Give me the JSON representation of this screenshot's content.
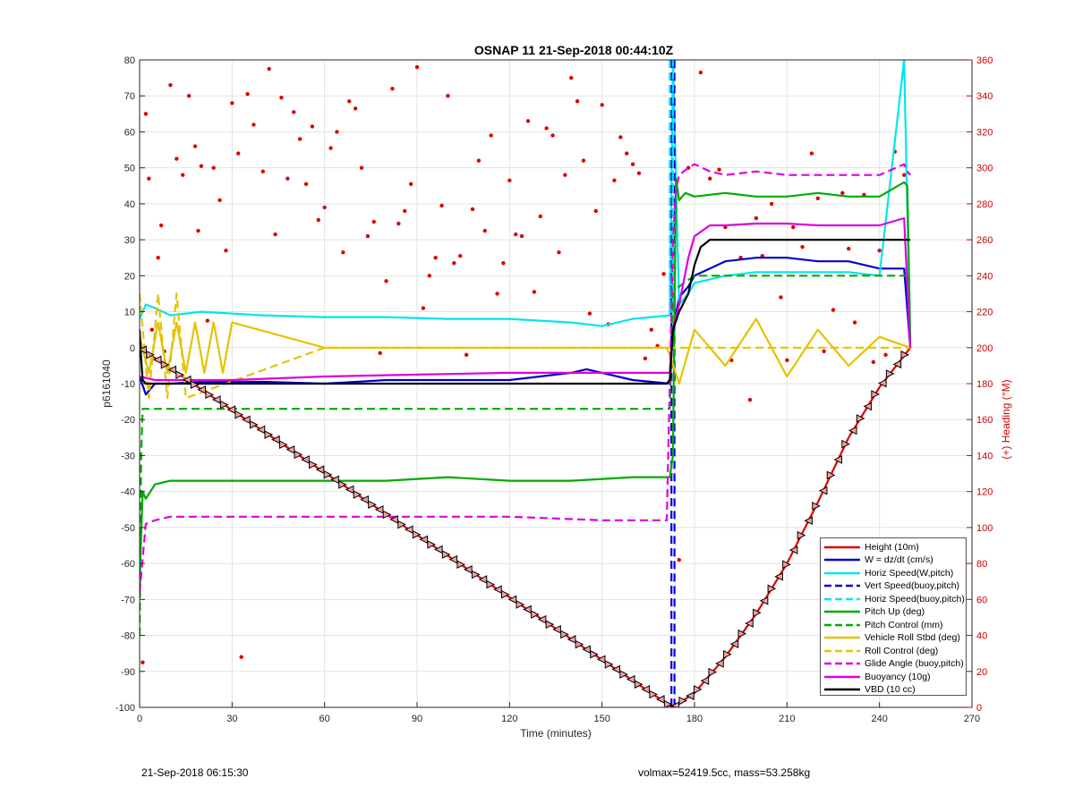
{
  "chart_data": {
    "type": "line",
    "title": "OSNAP 11 21-Sep-2018 00:44:10Z",
    "xlabel": "Time (minutes)",
    "ylabel": "p6161040",
    "y2label": "(+) Heading (°M)",
    "xlim": [
      0,
      270
    ],
    "ylim": [
      -100,
      80
    ],
    "y2lim": [
      0,
      360
    ],
    "xticks": [
      0,
      30,
      60,
      90,
      120,
      150,
      180,
      210,
      240,
      270
    ],
    "yticks": [
      -100,
      -90,
      -80,
      -70,
      -60,
      -50,
      -40,
      -30,
      -20,
      -10,
      0,
      10,
      20,
      30,
      40,
      50,
      60,
      70,
      80
    ],
    "y2ticks": [
      0,
      20,
      40,
      60,
      80,
      100,
      120,
      140,
      160,
      180,
      200,
      220,
      240,
      260,
      280,
      300,
      320,
      340,
      360
    ],
    "grid": true,
    "legend_position": "bottom-right",
    "series": [
      {
        "name": "Height (10m)",
        "color": "#dd0000",
        "style": "solid",
        "x": [
          0,
          172,
          173,
          180,
          190,
          200,
          210,
          220,
          230,
          240,
          250
        ],
        "y": [
          0,
          -99.5,
          -100,
          -96,
          -86,
          -74,
          -60,
          -43,
          -25,
          -11,
          0
        ]
      },
      {
        "name": "W = dz/dt (cm/s)",
        "color": "#0000cc",
        "style": "solid",
        "x": [
          0,
          2,
          5,
          10,
          20,
          40,
          60,
          80,
          100,
          120,
          140,
          145,
          150,
          160,
          172,
          173,
          175,
          178,
          180,
          190,
          200,
          210,
          220,
          230,
          240,
          248,
          250
        ],
        "y": [
          -8,
          -13,
          -10,
          -10,
          -9.5,
          -9.5,
          -10,
          -9,
          -9,
          -9,
          -7,
          -6,
          -7,
          -9,
          -10,
          5,
          14,
          17,
          20,
          24,
          25,
          25,
          24,
          24,
          22,
          22,
          0
        ]
      },
      {
        "name": "Horiz Speed(W,pitch)",
        "color": "#00e5ee",
        "style": "solid",
        "x": [
          0,
          2,
          5,
          10,
          20,
          40,
          60,
          80,
          100,
          120,
          140,
          150,
          160,
          172,
          173,
          175,
          178,
          180,
          190,
          200,
          210,
          220,
          230,
          240,
          248,
          250
        ],
        "y": [
          8,
          12,
          11,
          9,
          10,
          9,
          8.5,
          8.5,
          8,
          8,
          7,
          6,
          8,
          9,
          80,
          12,
          15,
          18,
          20,
          21,
          21,
          21,
          21,
          20,
          80,
          0
        ]
      },
      {
        "name": "Vert Speed(buoy,pitch)",
        "color": "#0000dd",
        "style": "dashed",
        "x": [
          172.5,
          172.5,
          173.5,
          173.5
        ],
        "y": [
          80,
          -100,
          -100,
          80
        ]
      },
      {
        "name": "Horiz Speed(buoy,pitch)",
        "color": "#00e5ee",
        "style": "dashed",
        "x": [
          172,
          172,
          173,
          173
        ],
        "y": [
          80,
          10,
          10,
          80
        ]
      },
      {
        "name": "Pitch Up (deg)",
        "color": "#00aa00",
        "style": "solid",
        "x": [
          0,
          1,
          2,
          5,
          10,
          20,
          40,
          60,
          80,
          100,
          120,
          140,
          160,
          172,
          173,
          174,
          175,
          177,
          180,
          190,
          200,
          210,
          220,
          230,
          240,
          248,
          249,
          250
        ],
        "y": [
          -65,
          -40,
          -42,
          -38,
          -37,
          -37,
          -37,
          -37,
          -37,
          -36,
          -37,
          -37,
          -36,
          -36,
          -30,
          47,
          41,
          43,
          42,
          43,
          42,
          42,
          43,
          42,
          42,
          46,
          45,
          2
        ]
      },
      {
        "name": "Pitch Control (mm)",
        "color": "#00aa00",
        "style": "dashed",
        "x": [
          0,
          0.5,
          1,
          2,
          60,
          120,
          172,
          173,
          175,
          180,
          200,
          220,
          240,
          250
        ],
        "y": [
          -80,
          -30,
          -17,
          -17,
          -17,
          -17,
          -17,
          15,
          17,
          20,
          20,
          20,
          20,
          20
        ]
      },
      {
        "name": "Vehicle Roll Stbd (deg)",
        "color": "#e6c200",
        "style": "solid",
        "x": [
          0,
          3,
          6,
          9,
          12,
          15,
          18,
          21,
          24,
          27,
          30,
          60,
          90,
          120,
          150,
          171,
          172,
          175,
          180,
          190,
          200,
          210,
          220,
          230,
          240,
          250
        ],
        "y": [
          3,
          -7,
          7,
          -7,
          7,
          -7,
          7,
          -7,
          7,
          -7,
          7,
          0,
          0,
          0,
          0,
          0,
          -2,
          -10,
          5,
          -5,
          8,
          -8,
          5,
          -5,
          3,
          0
        ]
      },
      {
        "name": "Roll Control (deg)",
        "color": "#e6c200",
        "style": "dashed",
        "x": [
          0,
          3,
          6,
          9,
          12,
          15,
          60,
          120,
          171,
          172,
          180,
          200,
          220,
          240,
          250
        ],
        "y": [
          15,
          -14,
          15,
          -14,
          15,
          -14,
          0,
          0,
          0,
          0,
          0,
          0,
          0,
          0,
          0
        ]
      },
      {
        "name": "Glide Angle (buoy,pitch)",
        "color": "#dd00dd",
        "style": "dashed",
        "x": [
          0,
          2,
          5,
          10,
          30,
          60,
          90,
          120,
          150,
          171,
          172,
          173,
          174,
          175,
          178,
          180,
          185,
          190,
          200,
          210,
          220,
          230,
          240,
          248,
          249,
          250
        ],
        "y": [
          -68,
          -49,
          -48,
          -47,
          -47,
          -47,
          -47,
          -47,
          -48,
          -48,
          -10,
          30,
          44,
          48,
          50,
          51,
          49,
          48,
          49,
          48,
          48,
          48,
          48,
          51,
          49,
          48
        ]
      },
      {
        "name": "Buoyancy (10g)",
        "color": "#dd00dd",
        "style": "solid",
        "x": [
          0,
          5,
          30,
          60,
          90,
          120,
          150,
          172,
          173,
          175,
          178,
          180,
          185,
          190,
          200,
          210,
          220,
          230,
          240,
          248,
          250
        ],
        "y": [
          -8,
          -9,
          -9,
          -8,
          -7.5,
          -7,
          -7,
          -7,
          5,
          12,
          25,
          31,
          34,
          34,
          34.5,
          34.5,
          34,
          34,
          34,
          36,
          0
        ]
      },
      {
        "name": "VBD (10 cc)",
        "color": "#000000",
        "style": "solid",
        "x": [
          0,
          0.5,
          1,
          2,
          5,
          30,
          60,
          90,
          120,
          150,
          171,
          172,
          173,
          175,
          178,
          180,
          182,
          185,
          190,
          200,
          220,
          240,
          248,
          250
        ],
        "y": [
          5,
          -3,
          -9,
          -10,
          -10,
          -10,
          -10,
          -10,
          -10,
          -10,
          -10,
          -9,
          5,
          10,
          15,
          23,
          28,
          30,
          30,
          30,
          30,
          30,
          30,
          30
        ]
      }
    ],
    "heading_points": {
      "name": "Heading",
      "color": "#dd0000",
      "axis": "right",
      "x": [
        1,
        2,
        3,
        4,
        6,
        7,
        8,
        10,
        12,
        14,
        16,
        18,
        19,
        20,
        22,
        24,
        26,
        28,
        30,
        32,
        33,
        35,
        37,
        40,
        42,
        44,
        46,
        48,
        50,
        52,
        54,
        56,
        58,
        60,
        62,
        64,
        66,
        68,
        70,
        72,
        74,
        76,
        78,
        80,
        82,
        84,
        86,
        88,
        90,
        92,
        94,
        96,
        98,
        100,
        102,
        104,
        106,
        108,
        110,
        112,
        114,
        116,
        118,
        120,
        122,
        124,
        126,
        128,
        130,
        132,
        134,
        136,
        138,
        140,
        142,
        144,
        146,
        148,
        150,
        152,
        154,
        156,
        158,
        160,
        162,
        164,
        166,
        168,
        170,
        175,
        178,
        182,
        185,
        188,
        190,
        192,
        195,
        198,
        200,
        202,
        205,
        208,
        210,
        212,
        215,
        218,
        220,
        222,
        225,
        228,
        230,
        232,
        235,
        238,
        240,
        242,
        245,
        248
      ],
      "y": [
        25,
        330,
        294,
        210,
        250,
        268,
        198,
        346,
        305,
        296,
        340,
        312,
        265,
        301,
        215,
        300,
        282,
        254,
        336,
        308,
        28,
        341,
        324,
        298,
        355,
        263,
        339,
        294,
        331,
        316,
        291,
        323,
        271,
        278,
        311,
        320,
        253,
        337,
        333,
        300,
        262,
        270,
        197,
        237,
        344,
        269,
        276,
        291,
        356,
        222,
        240,
        250,
        279,
        340,
        247,
        251,
        196,
        277,
        304,
        265,
        318,
        230,
        247,
        293,
        263,
        262,
        326,
        231,
        273,
        322,
        318,
        253,
        296,
        350,
        337,
        304,
        219,
        276,
        335,
        213,
        293,
        317,
        308,
        302,
        297,
        194,
        210,
        201,
        241,
        82,
        300,
        353,
        294,
        299,
        267,
        193,
        250,
        171,
        272,
        251,
        280,
        228,
        193,
        267,
        256,
        308,
        283,
        198,
        221,
        286,
        255,
        214,
        285,
        192,
        254,
        196,
        309,
        296
      ]
    }
  },
  "footer": {
    "timestamp": "21-Sep-2018 06:15:30",
    "summary": "volmax=52419.5cc, mass=53.258kg"
  }
}
